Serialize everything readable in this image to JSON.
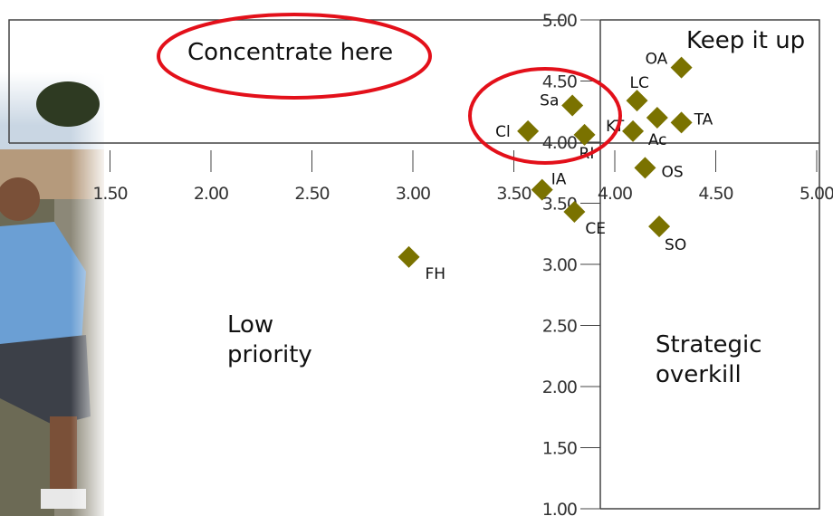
{
  "chart_data": {
    "type": "scatter",
    "series": [
      {
        "color": "#7a7200",
        "labels": [
          "OA",
          "LC",
          "Sa",
          "KT",
          "Ac",
          "TA",
          "Cl",
          "RI",
          "OS",
          "IA",
          "CE",
          "SO",
          "FH"
        ],
        "x": [
          4.33,
          4.11,
          3.79,
          4.09,
          4.21,
          4.33,
          3.57,
          3.85,
          4.15,
          3.64,
          3.8,
          4.22,
          2.98
        ],
        "values": [
          4.61,
          4.34,
          4.3,
          4.09,
          4.2,
          4.16,
          4.09,
          4.06,
          3.79,
          3.61,
          3.43,
          3.31,
          3.06
        ]
      }
    ],
    "xlim": [
      1.0,
      5.0
    ],
    "xticks": [
      {
        "value": 1.5,
        "label": "1.50"
      },
      {
        "value": 2.0,
        "label": "2.00"
      },
      {
        "value": 2.5,
        "label": "2.50"
      },
      {
        "value": 3.0,
        "label": "3.00"
      },
      {
        "value": 3.5,
        "label": "3.50"
      },
      {
        "value": 4.0,
        "label": "4.00"
      },
      {
        "value": 4.5,
        "label": "4.50"
      },
      {
        "value": 5.0,
        "label": "5.00"
      }
    ],
    "ylim": [
      1.0,
      5.0
    ],
    "yticks": [
      {
        "value": 1.0,
        "label": "1.00"
      },
      {
        "value": 1.5,
        "label": "1.50"
      },
      {
        "value": 2.0,
        "label": "2.00"
      },
      {
        "value": 2.5,
        "label": "2.50"
      },
      {
        "value": 3.0,
        "label": "3.00"
      },
      {
        "value": 3.5,
        "label": "3.50"
      },
      {
        "value": 4.0,
        "label": "4.00"
      },
      {
        "value": 4.5,
        "label": "4.50"
      },
      {
        "value": 5.0,
        "label": "5.00"
      }
    ],
    "annotations": [
      {
        "lines": [
          "Concentrate here"
        ]
      },
      {
        "lines": [
          "Keep it up"
        ]
      },
      {
        "lines": [
          "Low",
          "priority"
        ]
      },
      {
        "lines": [
          "Strategic",
          "overkill"
        ]
      }
    ]
  }
}
